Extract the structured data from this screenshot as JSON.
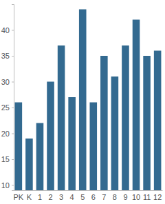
{
  "chart_data": {
    "type": "bar",
    "categories": [
      "PK",
      "K",
      "1",
      "2",
      "3",
      "4",
      "5",
      "6",
      "7",
      "8",
      "9",
      "10",
      "11",
      "12"
    ],
    "values": [
      26,
      19,
      22,
      30,
      37,
      27,
      44,
      26,
      35,
      31,
      37,
      42,
      35,
      36
    ],
    "color": "#336a90",
    "ylim": [
      9,
      45
    ],
    "yticks": [
      10,
      15,
      20,
      25,
      30,
      35,
      40
    ],
    "grid": false
  }
}
